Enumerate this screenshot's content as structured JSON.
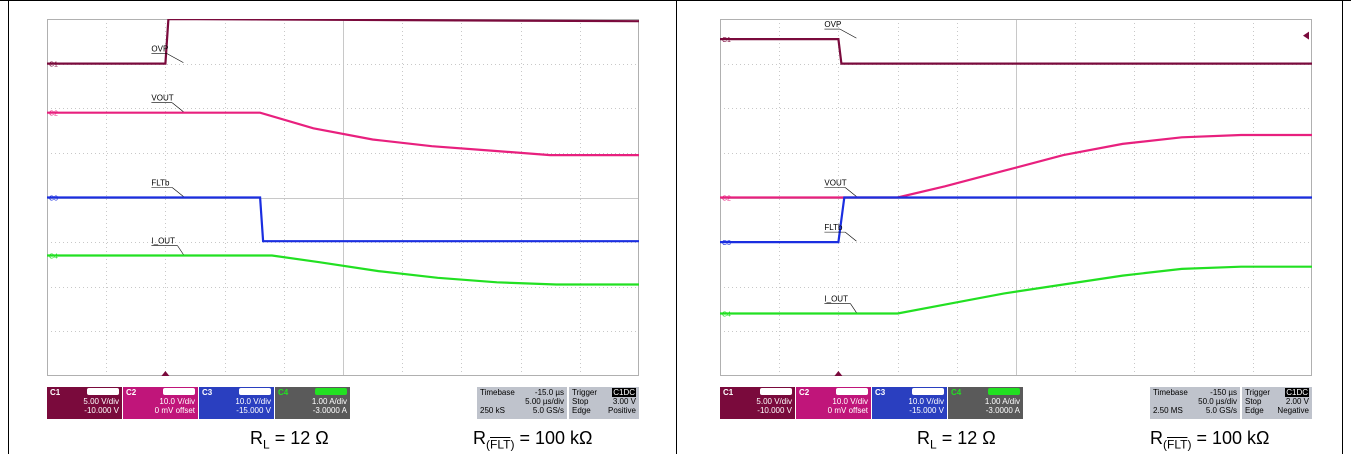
{
  "panels": [
    {
      "id": "left",
      "time_div": "5.00 µs/div",
      "timebase": "-15.0 µs",
      "samples": "250 kS",
      "rate": "5.0 GS/s",
      "trigger_mode": "Stop",
      "trigger_level": "3.00 V",
      "trigger_type": "Edge",
      "trigger_slope": "Positive",
      "caption_rl": "R",
      "caption_rl_sub": "L",
      "caption_rl_value": " = 12 Ω",
      "caption_r": "R",
      "caption_r_sub_open": "(",
      "caption_r_sub_bar": "FLT",
      "caption_r_sub_close": ")",
      "caption_r_value": " = 100 kΩ"
    },
    {
      "id": "right",
      "time_div": "50.0 µs/div",
      "timebase": "-150 µs",
      "samples": "2.50 MS",
      "rate": "5.0 GS/s",
      "trigger_mode": "Stop",
      "trigger_level": "2.00 V",
      "trigger_type": "Edge",
      "trigger_slope": "Negative",
      "caption_rl": "R",
      "caption_rl_sub": "L",
      "caption_rl_value": " = 12 Ω",
      "caption_r": "R",
      "caption_r_sub_open": "(",
      "caption_r_sub_bar": "FLT",
      "caption_r_sub_close": ")",
      "caption_r_value": " = 100 kΩ"
    }
  ],
  "channels": [
    {
      "id": "C1",
      "label": "OVP",
      "color": "#7a0a3c",
      "scale": "5.00 V/div",
      "offset": "-10.000 V"
    },
    {
      "id": "C2",
      "label": "VOUT",
      "color": "#e8207e",
      "scale": "10.0 V/div",
      "offset": "0 mV offset"
    },
    {
      "id": "C3",
      "label": "FLTb",
      "color": "#1a2ee0",
      "scale": "10.0 V/div",
      "offset": "-15.000 V"
    },
    {
      "id": "C4",
      "label": "I_OUT",
      "color": "#22e022",
      "scale": "1.00 A/div",
      "offset": "-3.0000 A"
    }
  ],
  "labels": {
    "timebase": "Timebase",
    "trigger": "Trigger",
    "trigger_src": "C1",
    "trigger_cpl": "DC"
  },
  "chart_data": [
    {
      "type": "line",
      "x_unit": "div",
      "xlim": [
        0,
        10
      ],
      "ylim": [
        0,
        8
      ],
      "series": [
        {
          "name": "OVP",
          "x": [
            0,
            2,
            2.05,
            10
          ],
          "y": [
            7.0,
            7.0,
            8.0,
            7.95
          ]
        },
        {
          "name": "VOUT",
          "x": [
            0,
            3.6,
            4.5,
            5.5,
            6.5,
            7.5,
            8.5,
            10
          ],
          "y": [
            5.9,
            5.9,
            5.55,
            5.3,
            5.15,
            5.05,
            4.95,
            4.95
          ]
        },
        {
          "name": "FLTb",
          "x": [
            0,
            3.6,
            3.65,
            10
          ],
          "y": [
            4.0,
            4.0,
            3.02,
            3.02
          ]
        },
        {
          "name": "I_OUT",
          "x": [
            0,
            3.8,
            4.6,
            5.6,
            6.6,
            7.6,
            8.6,
            10
          ],
          "y": [
            2.7,
            2.7,
            2.55,
            2.35,
            2.2,
            2.1,
            2.05,
            2.05
          ]
        }
      ]
    },
    {
      "type": "line",
      "x_unit": "div",
      "xlim": [
        0,
        10
      ],
      "ylim": [
        0,
        8
      ],
      "series": [
        {
          "name": "OVP",
          "x": [
            0,
            2,
            2.05,
            10
          ],
          "y": [
            7.55,
            7.55,
            7.0,
            7.0
          ]
        },
        {
          "name": "VOUT",
          "x": [
            0,
            3,
            3.8,
            4.8,
            5.8,
            6.8,
            7.8,
            8.8,
            10
          ],
          "y": [
            4.0,
            4.0,
            4.25,
            4.6,
            4.95,
            5.2,
            5.35,
            5.4,
            5.4
          ]
        },
        {
          "name": "FLTb",
          "x": [
            0,
            2,
            2.1,
            10
          ],
          "y": [
            3.0,
            3.0,
            4.0,
            4.0
          ]
        },
        {
          "name": "I_OUT",
          "x": [
            0,
            3,
            3.8,
            4.8,
            5.8,
            6.8,
            7.8,
            8.8,
            10
          ],
          "y": [
            1.4,
            1.4,
            1.6,
            1.85,
            2.05,
            2.25,
            2.4,
            2.45,
            2.45
          ]
        }
      ]
    }
  ]
}
